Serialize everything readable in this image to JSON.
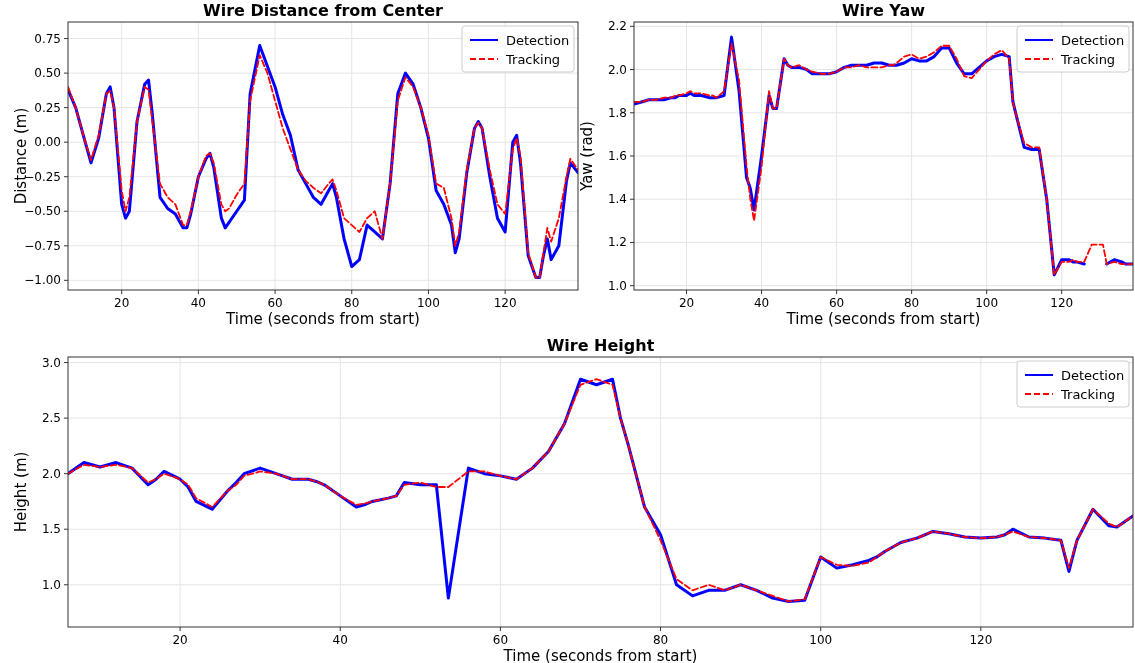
{
  "chart_data": [
    {
      "type": "line",
      "title": "Wire Distance from Center",
      "xlabel": "Time (seconds from start)",
      "ylabel": "Distance (m)",
      "xlim": [
        6,
        139
      ],
      "xticks": [
        20,
        40,
        60,
        80,
        100,
        120
      ],
      "ylim": [
        -1.07,
        0.87
      ],
      "yticks": [
        {
          "value": -1,
          "label": "−1.00"
        },
        {
          "value": -0.75,
          "label": "−0.75"
        },
        {
          "value": -0.5,
          "label": "−0.50"
        },
        {
          "value": -0.25,
          "label": "−0.25"
        },
        {
          "value": 0,
          "label": "0.00"
        },
        {
          "value": 0.25,
          "label": "0.25"
        },
        {
          "value": 0.5,
          "label": "0.50"
        },
        {
          "value": 0.75,
          "label": "0.75"
        }
      ],
      "grid": true,
      "legend": "top right",
      "x": [
        6,
        8,
        10,
        12,
        14,
        16,
        17,
        18,
        20,
        21,
        22,
        24,
        26,
        27,
        28,
        30,
        32,
        34,
        36,
        37,
        38,
        40,
        42,
        43,
        44,
        46,
        47,
        48,
        50,
        52,
        53.5,
        56,
        58,
        60,
        62,
        64,
        66,
        68,
        70,
        72,
        74,
        75,
        76,
        78,
        80,
        82,
        84,
        86,
        88,
        90,
        92,
        94,
        96,
        98,
        100,
        102,
        104,
        106,
        107,
        108,
        110,
        112,
        113,
        114,
        116,
        118,
        120,
        122,
        123,
        124,
        126,
        128,
        129,
        130,
        131,
        132,
        134,
        136,
        137,
        139
      ],
      "series": [
        {
          "name": "Detection",
          "color": "#0000ff",
          "line_style": "solid",
          "values": [
            0.38,
            0.25,
            0.05,
            -0.15,
            0.03,
            0.35,
            0.4,
            0.25,
            -0.45,
            -0.55,
            -0.5,
            0.15,
            0.42,
            0.45,
            0.2,
            -0.4,
            -0.48,
            -0.52,
            -0.62,
            -0.62,
            -0.52,
            -0.25,
            -0.12,
            -0.08,
            -0.18,
            -0.55,
            -0.62,
            -0.58,
            -0.5,
            -0.42,
            0.35,
            0.7,
            0.55,
            0.4,
            0.2,
            0.05,
            -0.2,
            -0.3,
            -0.4,
            -0.45,
            -0.35,
            -0.3,
            -0.4,
            -0.7,
            -0.9,
            -0.85,
            -0.6,
            -0.65,
            -0.7,
            -0.3,
            0.35,
            0.5,
            0.42,
            0.25,
            0.03,
            -0.35,
            -0.45,
            -0.6,
            -0.8,
            -0.7,
            -0.22,
            0.1,
            0.15,
            0.1,
            -0.25,
            -0.55,
            -0.65,
            0.0,
            0.05,
            -0.15,
            -0.82,
            -0.98,
            -0.98,
            -0.82,
            -0.7,
            -0.85,
            -0.75,
            -0.28,
            -0.15,
            -0.22
          ]
        },
        {
          "name": "Tracking",
          "color": "#ff0000",
          "line_style": "dashed",
          "values": [
            0.4,
            0.25,
            0.05,
            -0.13,
            0.05,
            0.35,
            0.37,
            0.25,
            -0.35,
            -0.5,
            -0.4,
            0.15,
            0.4,
            0.38,
            0.15,
            -0.3,
            -0.4,
            -0.45,
            -0.6,
            -0.6,
            -0.5,
            -0.25,
            -0.1,
            -0.08,
            -0.15,
            -0.45,
            -0.5,
            -0.48,
            -0.38,
            -0.3,
            0.3,
            0.63,
            0.5,
            0.3,
            0.1,
            -0.05,
            -0.2,
            -0.28,
            -0.33,
            -0.37,
            -0.3,
            -0.27,
            -0.35,
            -0.55,
            -0.6,
            -0.65,
            -0.55,
            -0.5,
            -0.7,
            -0.3,
            0.3,
            0.47,
            0.4,
            0.25,
            0.05,
            -0.3,
            -0.33,
            -0.55,
            -0.75,
            -0.65,
            -0.2,
            0.1,
            0.14,
            0.1,
            -0.2,
            -0.45,
            -0.52,
            -0.05,
            0.03,
            -0.1,
            -0.8,
            -0.98,
            -0.98,
            -0.8,
            -0.62,
            -0.72,
            -0.55,
            -0.25,
            -0.12,
            -0.2
          ]
        }
      ]
    },
    {
      "type": "line",
      "title": "Wire Yaw",
      "xlabel": "Time (seconds from start)",
      "ylabel": "Yaw (rad)",
      "xlim": [
        6,
        139
      ],
      "xticks": [
        20,
        40,
        60,
        80,
        100,
        120
      ],
      "ylim": [
        0.98,
        2.22
      ],
      "yticks": [
        {
          "value": 1,
          "label": "1.0"
        },
        {
          "value": 1.2,
          "label": "1.2"
        },
        {
          "value": 1.4,
          "label": "1.4"
        },
        {
          "value": 1.6,
          "label": "1.6"
        },
        {
          "value": 1.8,
          "label": "1.8"
        },
        {
          "value": 2,
          "label": "2.0"
        },
        {
          "value": 2.2,
          "label": "2.2"
        }
      ],
      "grid": true,
      "legend": "top right",
      "x": [
        6,
        8,
        10,
        12,
        14,
        16,
        17,
        18,
        20,
        21,
        22,
        24,
        26,
        27,
        28,
        30,
        32,
        34,
        36,
        37,
        38,
        40,
        42,
        43,
        44,
        46,
        47,
        48,
        50,
        52,
        53.5,
        56,
        58,
        60,
        62,
        64,
        66,
        68,
        70,
        72,
        74,
        75,
        76,
        78,
        80,
        82,
        84,
        86,
        88,
        90,
        92,
        94,
        96,
        98,
        100,
        102,
        104,
        106,
        107,
        108,
        110,
        112,
        113,
        114,
        116,
        118,
        120,
        122,
        123,
        124,
        126,
        128,
        129,
        130,
        131,
        132,
        134,
        136,
        137,
        139
      ],
      "series": [
        {
          "name": "Detection",
          "color": "#0000ff",
          "line_style": "solid",
          "values": [
            1.84,
            1.85,
            1.86,
            1.86,
            1.86,
            1.87,
            1.87,
            1.88,
            1.88,
            1.89,
            1.88,
            1.88,
            1.87,
            1.87,
            1.87,
            1.88,
            2.15,
            1.9,
            1.5,
            1.45,
            1.35,
            1.6,
            1.88,
            1.82,
            1.82,
            2.05,
            2.02,
            2.01,
            2.01,
            2.0,
            1.98,
            1.98,
            1.98,
            1.99,
            2.01,
            2.02,
            2.02,
            2.02,
            2.03,
            2.03,
            2.02,
            2.02,
            2.02,
            2.03,
            2.05,
            2.04,
            2.04,
            2.06,
            2.1,
            2.1,
            2.03,
            1.98,
            1.98,
            2.01,
            2.04,
            2.06,
            2.07,
            2.06,
            1.85,
            1.78,
            1.64,
            1.63,
            1.63,
            1.63,
            1.4,
            1.05,
            1.12,
            1.12,
            1.11,
            1.11,
            1.1,
            null,
            null,
            null,
            null,
            1.1,
            1.12,
            1.11,
            1.1,
            1.1
          ]
        },
        {
          "name": "Tracking",
          "color": "#ff0000",
          "line_style": "dashed",
          "values": [
            1.85,
            1.85,
            1.86,
            1.86,
            1.87,
            1.87,
            1.88,
            1.88,
            1.89,
            1.9,
            1.89,
            1.89,
            1.88,
            1.88,
            1.87,
            1.9,
            2.12,
            1.95,
            1.55,
            1.4,
            1.3,
            1.55,
            1.9,
            1.82,
            1.82,
            2.05,
            2.02,
            2.01,
            2.02,
            2.0,
            1.99,
            1.98,
            1.98,
            1.99,
            2.01,
            2.01,
            2.02,
            2.01,
            2.01,
            2.01,
            2.02,
            2.02,
            2.03,
            2.06,
            2.07,
            2.05,
            2.06,
            2.08,
            2.11,
            2.11,
            2.05,
            1.97,
            1.96,
            2.0,
            2.04,
            2.07,
            2.09,
            2.05,
            1.85,
            1.78,
            1.66,
            1.64,
            1.64,
            1.64,
            1.4,
            1.05,
            1.11,
            1.11,
            1.12,
            1.11,
            1.11,
            1.19,
            1.19,
            1.19,
            1.19,
            1.1,
            1.11,
            1.1,
            1.1,
            1.1
          ]
        }
      ]
    },
    {
      "type": "line",
      "title": "Wire Height",
      "xlabel": "Time (seconds from start)",
      "ylabel": "Height (m)",
      "xlim": [
        6,
        139
      ],
      "xticks": [
        20,
        40,
        60,
        80,
        100,
        120
      ],
      "ylim": [
        0.62,
        3.05
      ],
      "yticks": [
        {
          "value": 1,
          "label": "1.0"
        },
        {
          "value": 1.5,
          "label": "1.5"
        },
        {
          "value": 2,
          "label": "2.0"
        },
        {
          "value": 2.5,
          "label": "2.5"
        },
        {
          "value": 3,
          "label": "3.0"
        }
      ],
      "grid": true,
      "legend": "top right",
      "x": [
        6,
        8,
        10,
        12,
        14,
        16,
        17,
        18,
        20,
        21,
        22,
        24,
        26,
        27,
        28,
        30,
        32,
        34,
        36,
        37,
        38,
        40,
        42,
        43,
        44,
        46,
        47,
        48,
        50,
        52,
        53.5,
        56,
        58,
        60,
        62,
        64,
        66,
        68,
        70,
        72,
        74,
        75,
        76,
        78,
        80,
        82,
        84,
        86,
        88,
        90,
        92,
        94,
        96,
        98,
        100,
        102,
        104,
        106,
        107,
        108,
        110,
        112,
        113,
        114,
        116,
        118,
        120,
        122,
        123,
        124,
        126,
        128,
        129,
        130,
        131,
        132,
        134,
        136,
        137,
        139
      ],
      "series": [
        {
          "name": "Detection",
          "color": "#0000ff",
          "line_style": "solid",
          "values": [
            2.0,
            2.1,
            2.06,
            2.1,
            2.05,
            1.9,
            1.95,
            2.02,
            1.95,
            1.88,
            1.75,
            1.68,
            1.85,
            1.92,
            2.0,
            2.05,
            2.0,
            1.95,
            1.95,
            1.93,
            1.9,
            1.8,
            1.7,
            1.72,
            1.75,
            1.78,
            1.8,
            1.92,
            1.9,
            1.9,
            0.88,
            2.05,
            2.0,
            1.98,
            1.95,
            2.05,
            2.2,
            2.45,
            2.85,
            2.8,
            2.85,
            2.5,
            2.25,
            1.7,
            1.45,
            1.0,
            0.9,
            0.95,
            0.95,
            1.0,
            0.95,
            0.88,
            0.85,
            0.86,
            1.25,
            1.15,
            1.18,
            1.22,
            1.25,
            1.3,
            1.38,
            1.42,
            1.45,
            1.48,
            1.46,
            1.43,
            1.42,
            1.43,
            1.45,
            1.5,
            1.43,
            1.42,
            1.41,
            1.4,
            1.12,
            1.4,
            1.68,
            1.53,
            1.52,
            1.62
          ]
        },
        {
          "name": "Tracking",
          "color": "#ff0000",
          "line_style": "dashed",
          "values": [
            2.0,
            2.08,
            2.06,
            2.08,
            2.05,
            1.92,
            1.95,
            2.0,
            1.95,
            1.9,
            1.78,
            1.7,
            1.85,
            1.9,
            1.98,
            2.02,
            2.0,
            1.95,
            1.95,
            1.93,
            1.9,
            1.8,
            1.72,
            1.73,
            1.75,
            1.78,
            1.8,
            1.9,
            1.92,
            1.88,
            1.88,
            2.02,
            2.02,
            1.98,
            1.95,
            2.05,
            2.2,
            2.45,
            2.8,
            2.85,
            2.8,
            2.5,
            2.25,
            1.7,
            1.4,
            1.05,
            0.95,
            1.0,
            0.95,
            1.0,
            0.95,
            0.9,
            0.85,
            0.87,
            1.25,
            1.18,
            1.17,
            1.2,
            1.25,
            1.3,
            1.38,
            1.42,
            1.45,
            1.48,
            1.46,
            1.43,
            1.42,
            1.43,
            1.45,
            1.48,
            1.43,
            1.42,
            1.41,
            1.4,
            1.15,
            1.4,
            1.68,
            1.55,
            1.52,
            1.62
          ]
        }
      ]
    }
  ]
}
